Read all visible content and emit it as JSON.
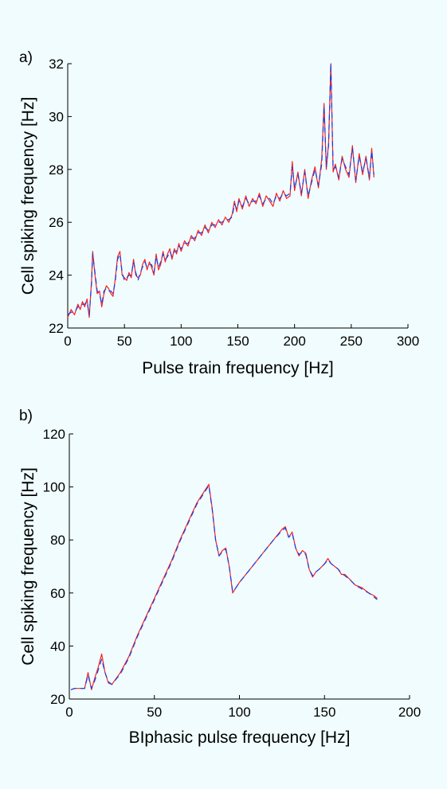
{
  "chart_data": [
    {
      "type": "line",
      "panel_label": "a)",
      "xlabel": "Pulse train frequency [Hz]",
      "ylabel": "Cell spiking frequency [Hz]",
      "xlim": [
        0,
        300
      ],
      "ylim": [
        22,
        32
      ],
      "xticks": [
        0,
        50,
        100,
        150,
        200,
        250,
        300
      ],
      "yticks": [
        22,
        24,
        26,
        28,
        30,
        32
      ],
      "grid": false,
      "series": [
        {
          "color": "#ff2020",
          "x": [
            0,
            3,
            6,
            9,
            11,
            13,
            15,
            17,
            19,
            21,
            22,
            24,
            26,
            28,
            30,
            32,
            34,
            36,
            38,
            40,
            42,
            44,
            46,
            48,
            50,
            52,
            54,
            56,
            58,
            60,
            62,
            64,
            66,
            68,
            70,
            72,
            74,
            76,
            78,
            80,
            82,
            84,
            86,
            88,
            90,
            92,
            94,
            96,
            98,
            100,
            103,
            106,
            109,
            112,
            115,
            118,
            121,
            124,
            127,
            130,
            133,
            136,
            139,
            142,
            145,
            147,
            149,
            151,
            154,
            157,
            160,
            163,
            166,
            169,
            172,
            175,
            178,
            181,
            184,
            187,
            190,
            193,
            196,
            198,
            200,
            203,
            206,
            209,
            212,
            215,
            218,
            221,
            224,
            226,
            228,
            230,
            232,
            234,
            236,
            239,
            242,
            245,
            248,
            251,
            254,
            257,
            260,
            263,
            266,
            268,
            270
          ],
          "y": [
            22.4,
            22.7,
            22.5,
            22.9,
            22.7,
            23.0,
            22.8,
            23.1,
            22.4,
            23.8,
            24.9,
            24.0,
            23.3,
            23.4,
            22.8,
            23.3,
            23.6,
            23.5,
            23.3,
            23.2,
            23.9,
            24.7,
            24.9,
            24.0,
            23.9,
            23.8,
            24.1,
            23.9,
            24.6,
            24.0,
            23.9,
            24.0,
            24.4,
            24.6,
            24.2,
            24.5,
            24.3,
            24.0,
            24.8,
            24.2,
            24.4,
            24.9,
            24.5,
            24.8,
            25.0,
            24.6,
            25.0,
            24.8,
            25.2,
            24.9,
            25.3,
            25.1,
            25.5,
            25.3,
            25.7,
            25.5,
            25.9,
            25.6,
            26.0,
            25.8,
            26.1,
            25.9,
            26.2,
            26.0,
            26.3,
            26.8,
            26.4,
            26.9,
            26.5,
            27.0,
            26.6,
            26.9,
            26.7,
            27.1,
            26.6,
            27.0,
            26.8,
            26.6,
            27.1,
            26.8,
            27.2,
            26.9,
            27.0,
            28.3,
            27.2,
            27.9,
            27.0,
            28.0,
            26.9,
            27.6,
            28.1,
            27.3,
            28.4,
            30.5,
            28.0,
            29.0,
            32.0,
            27.9,
            28.2,
            27.6,
            28.5,
            28.0,
            27.7,
            28.9,
            27.5,
            28.6,
            27.8,
            28.5,
            27.6,
            28.8,
            27.7
          ]
        },
        {
          "color": "#1a3fe0",
          "x": [
            0,
            3,
            6,
            9,
            11,
            13,
            15,
            17,
            19,
            21,
            22,
            24,
            26,
            28,
            30,
            32,
            34,
            36,
            38,
            40,
            42,
            44,
            46,
            48,
            50,
            52,
            54,
            56,
            58,
            60,
            62,
            64,
            66,
            68,
            70,
            72,
            74,
            76,
            78,
            80,
            82,
            84,
            86,
            88,
            90,
            92,
            94,
            96,
            98,
            100,
            103,
            106,
            109,
            112,
            115,
            118,
            121,
            124,
            127,
            130,
            133,
            136,
            139,
            142,
            145,
            147,
            149,
            151,
            154,
            157,
            160,
            163,
            166,
            169,
            172,
            175,
            178,
            181,
            184,
            187,
            190,
            193,
            196,
            198,
            200,
            203,
            206,
            209,
            212,
            215,
            218,
            221,
            224,
            226,
            228,
            230,
            232,
            234,
            236,
            239,
            242,
            245,
            248,
            251,
            254,
            257,
            260,
            263,
            266,
            268,
            270
          ],
          "y": [
            22.5,
            22.6,
            22.6,
            22.8,
            22.8,
            22.9,
            22.9,
            23.0,
            22.5,
            23.7,
            24.8,
            24.1,
            23.4,
            23.3,
            22.9,
            23.4,
            23.5,
            23.4,
            23.4,
            23.3,
            23.8,
            24.6,
            24.8,
            24.1,
            23.8,
            23.9,
            24.0,
            24.0,
            24.5,
            24.1,
            23.8,
            24.1,
            24.3,
            24.5,
            24.3,
            24.4,
            24.4,
            24.1,
            24.7,
            24.3,
            24.5,
            24.8,
            24.6,
            24.7,
            24.9,
            24.7,
            24.9,
            24.9,
            25.1,
            25.0,
            25.2,
            25.2,
            25.4,
            25.4,
            25.6,
            25.6,
            25.8,
            25.7,
            25.9,
            25.9,
            26.0,
            26.0,
            26.1,
            26.1,
            26.2,
            26.7,
            26.5,
            26.8,
            26.6,
            26.9,
            26.7,
            26.8,
            26.8,
            27.0,
            26.7,
            26.9,
            26.9,
            26.7,
            27.0,
            26.9,
            27.1,
            27.0,
            27.1,
            28.1,
            27.3,
            27.8,
            27.1,
            27.9,
            27.0,
            27.5,
            28.0,
            27.4,
            28.2,
            30.4,
            28.1,
            28.9,
            32.0,
            28.0,
            28.1,
            27.7,
            28.4,
            28.1,
            27.8,
            28.8,
            27.6,
            28.5,
            27.9,
            28.4,
            27.7,
            28.7,
            27.8
          ]
        }
      ]
    },
    {
      "type": "line",
      "panel_label": "b)",
      "xlabel": "BIphasic pulse frequency [Hz]",
      "ylabel": "Cell spiking frequency [Hz]",
      "xlim": [
        0,
        200
      ],
      "ylim": [
        20,
        120
      ],
      "xticks": [
        0,
        50,
        100,
        150,
        200
      ],
      "yticks": [
        20,
        40,
        60,
        80,
        100,
        120
      ],
      "grid": false,
      "series": [
        {
          "color": "#ff2020",
          "x": [
            1,
            3,
            6,
            9,
            11,
            13,
            15,
            17,
            19,
            21,
            23,
            25,
            30,
            35,
            40,
            45,
            50,
            55,
            60,
            65,
            70,
            75,
            80,
            82,
            84,
            86,
            88,
            90,
            92,
            94,
            96,
            98,
            100,
            105,
            110,
            115,
            120,
            125,
            127,
            129,
            131,
            133,
            135,
            137,
            139,
            141,
            143,
            145,
            147,
            150,
            152,
            154,
            156,
            158,
            160,
            162,
            165,
            168,
            172,
            176,
            179,
            181
          ],
          "y": [
            23.5,
            24,
            24,
            24,
            30,
            23.5,
            28,
            32,
            37,
            30,
            26,
            25.5,
            30,
            36,
            44,
            51,
            58,
            65,
            72,
            80,
            87,
            94,
            99,
            101,
            92,
            80,
            74,
            76,
            77,
            70,
            60,
            62,
            64,
            68,
            72,
            76,
            80,
            84,
            85,
            81,
            83,
            77,
            74,
            76,
            75,
            69,
            66,
            68,
            69,
            71,
            73,
            71,
            70,
            69,
            67,
            67,
            65,
            63,
            62,
            60,
            59,
            58
          ]
        },
        {
          "color": "#1a3fe0",
          "x": [
            1,
            3,
            6,
            9,
            11,
            13,
            15,
            17,
            19,
            21,
            23,
            25,
            30,
            35,
            40,
            45,
            50,
            55,
            60,
            65,
            70,
            75,
            80,
            82,
            84,
            86,
            88,
            90,
            92,
            94,
            96,
            98,
            100,
            105,
            110,
            115,
            120,
            125,
            127,
            129,
            131,
            133,
            135,
            137,
            139,
            141,
            143,
            145,
            147,
            150,
            152,
            154,
            156,
            158,
            160,
            162,
            165,
            168,
            172,
            176,
            179,
            181
          ],
          "y": [
            23.5,
            24,
            24,
            24,
            29,
            24,
            27,
            31,
            35,
            30,
            26.5,
            25.5,
            29.5,
            35.5,
            43.5,
            50.5,
            57.5,
            64.5,
            71.5,
            79.5,
            86.5,
            93.5,
            98.5,
            100.5,
            91.5,
            80,
            74,
            75.5,
            76.5,
            70,
            60.5,
            62,
            64,
            68,
            72,
            76,
            80,
            83.5,
            84.5,
            81,
            82.5,
            77,
            74.5,
            75.5,
            74.5,
            69,
            66.5,
            68,
            69,
            71,
            72.5,
            71,
            70,
            69,
            67.5,
            66.5,
            65,
            63,
            61.5,
            60,
            58.5,
            57.5
          ]
        }
      ]
    }
  ]
}
